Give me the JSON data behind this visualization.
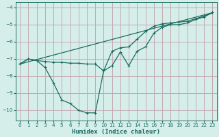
{
  "title": "",
  "xlabel": "Humidex (Indice chaleur)",
  "ylabel": "",
  "xlim": [
    -0.5,
    23.5
  ],
  "ylim": [
    -10.6,
    -3.7
  ],
  "xticks": [
    0,
    1,
    2,
    3,
    4,
    5,
    6,
    7,
    8,
    9,
    10,
    11,
    12,
    13,
    14,
    15,
    16,
    17,
    18,
    19,
    20,
    21,
    22,
    23
  ],
  "yticks": [
    -10,
    -9,
    -8,
    -7,
    -6,
    -5,
    -4
  ],
  "background_color": "#d5eeea",
  "grid_color": "#c4a8b0",
  "line_color": "#1a6b60",
  "line1_x": [
    0,
    1,
    2,
    3,
    4,
    5,
    6,
    7,
    8,
    9,
    10,
    11,
    12,
    13,
    14,
    15,
    16,
    17,
    18,
    19,
    20,
    21,
    22,
    23
  ],
  "line1_y": [
    -7.3,
    -7.0,
    -7.1,
    -7.5,
    -8.4,
    -9.4,
    -9.6,
    -10.0,
    -10.15,
    -10.15,
    -7.7,
    -7.4,
    -6.6,
    -7.4,
    -6.55,
    -6.3,
    -5.5,
    -5.15,
    -5.0,
    -5.0,
    -4.9,
    -4.7,
    -4.55,
    -4.3
  ],
  "line2_x": [
    0,
    1,
    2,
    3,
    4,
    5,
    6,
    7,
    8,
    9,
    10,
    11,
    12,
    13,
    14,
    15,
    16,
    17,
    18,
    19,
    20,
    21,
    22,
    23
  ],
  "line2_y": [
    -7.3,
    -7.0,
    -7.1,
    -7.15,
    -7.2,
    -7.2,
    -7.25,
    -7.25,
    -7.3,
    -7.3,
    -7.7,
    -6.55,
    -6.35,
    -6.3,
    -5.85,
    -5.4,
    -5.1,
    -4.95,
    -4.9,
    -4.85,
    -4.8,
    -4.65,
    -4.5,
    -4.3
  ],
  "line3_x": [
    0,
    23
  ],
  "line3_y": [
    -7.3,
    -4.3
  ]
}
